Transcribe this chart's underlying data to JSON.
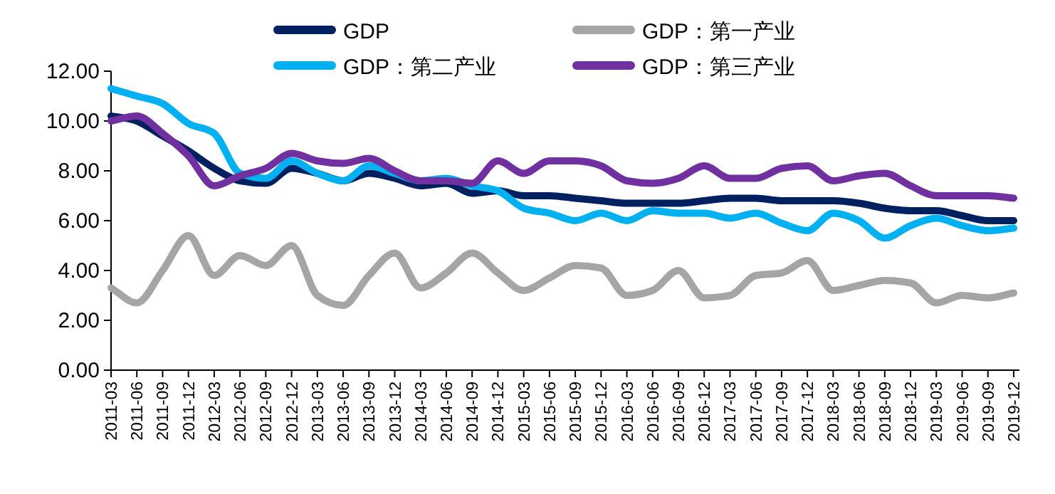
{
  "chart_data": {
    "type": "line",
    "categories": [
      "2011-03",
      "2011-06",
      "2011-09",
      "2011-12",
      "2012-03",
      "2012-06",
      "2012-09",
      "2012-12",
      "2013-03",
      "2013-06",
      "2013-09",
      "2013-12",
      "2014-03",
      "2014-06",
      "2014-09",
      "2014-12",
      "2015-03",
      "2015-06",
      "2015-09",
      "2015-12",
      "2016-03",
      "2016-06",
      "2016-09",
      "2016-12",
      "2017-03",
      "2017-06",
      "2017-09",
      "2017-12",
      "2018-03",
      "2018-06",
      "2018-09",
      "2018-12",
      "2019-03",
      "2019-06",
      "2019-09",
      "2019-12"
    ],
    "series": [
      {
        "name": "GDP",
        "color": "#002060",
        "values": [
          10.2,
          10.0,
          9.4,
          8.8,
          8.1,
          7.6,
          7.5,
          8.1,
          7.9,
          7.6,
          7.9,
          7.7,
          7.4,
          7.5,
          7.1,
          7.2,
          7.0,
          7.0,
          6.9,
          6.8,
          6.7,
          6.7,
          6.7,
          6.8,
          6.9,
          6.9,
          6.8,
          6.8,
          6.8,
          6.7,
          6.5,
          6.4,
          6.4,
          6.2,
          6.0,
          6.0
        ]
      },
      {
        "name": "GDP：第一产业",
        "color": "#a5a5a5",
        "values": [
          3.3,
          2.7,
          4.0,
          5.4,
          3.8,
          4.6,
          4.2,
          5.0,
          3.0,
          2.6,
          3.8,
          4.7,
          3.3,
          3.9,
          4.7,
          3.9,
          3.2,
          3.7,
          4.2,
          4.1,
          3.0,
          3.2,
          4.0,
          2.9,
          3.0,
          3.8,
          3.9,
          4.4,
          3.2,
          3.4,
          3.6,
          3.5,
          2.7,
          3.0,
          2.9,
          3.1
        ]
      },
      {
        "name": "GDP：第二产业",
        "color": "#00b0f0",
        "values": [
          11.3,
          11.0,
          10.7,
          9.9,
          9.5,
          7.9,
          7.7,
          8.4,
          7.9,
          7.6,
          8.2,
          7.9,
          7.6,
          7.7,
          7.4,
          7.2,
          6.5,
          6.3,
          6.0,
          6.3,
          6.0,
          6.4,
          6.3,
          6.3,
          6.1,
          6.3,
          5.9,
          5.6,
          6.3,
          6.0,
          5.3,
          5.8,
          6.1,
          5.8,
          5.6,
          5.7
        ]
      },
      {
        "name": "GDP：第三产业",
        "color": "#7030a0",
        "values": [
          10.0,
          10.2,
          9.5,
          8.6,
          7.4,
          7.8,
          8.1,
          8.7,
          8.4,
          8.3,
          8.5,
          8.0,
          7.6,
          7.6,
          7.5,
          8.4,
          7.9,
          8.4,
          8.4,
          8.2,
          7.6,
          7.5,
          7.7,
          8.2,
          7.7,
          7.7,
          8.1,
          8.2,
          7.6,
          7.8,
          7.9,
          7.4,
          7.0,
          7.0,
          7.0,
          6.9
        ]
      }
    ],
    "ylim": [
      0,
      12
    ],
    "yticks": [
      {
        "value": 0,
        "label": "0.00"
      },
      {
        "value": 2,
        "label": "2.00"
      },
      {
        "value": 4,
        "label": "4.00"
      },
      {
        "value": 6,
        "label": "6.00"
      },
      {
        "value": 8,
        "label": "8.00"
      },
      {
        "value": 10,
        "label": "10.00"
      },
      {
        "value": 12,
        "label": "12.00"
      }
    ],
    "legend": "top"
  }
}
